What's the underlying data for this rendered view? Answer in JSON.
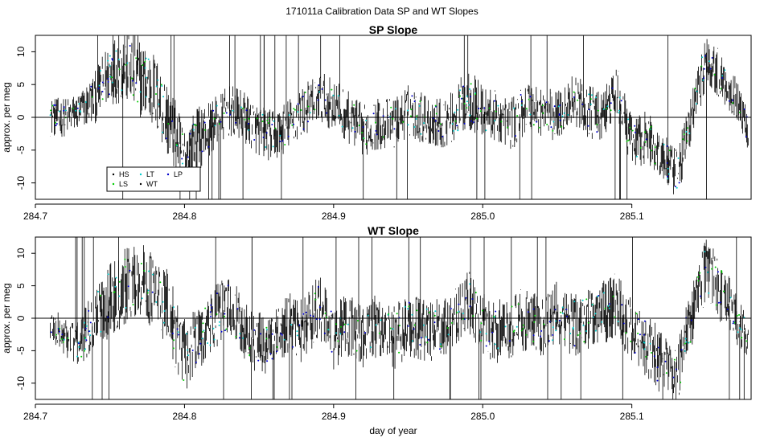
{
  "figure": {
    "title": "171011a   Calibration Data SP and WT Slopes",
    "xlabel": "day of year"
  },
  "chart_data": [
    {
      "type": "line",
      "title": "SP Slope",
      "xlabel": "",
      "ylabel": "approx. per meg",
      "xlim": [
        284.7,
        285.18
      ],
      "ylim": [
        -12.5,
        12.5
      ],
      "x_ticks": [
        284.7,
        284.8,
        284.9,
        285.0,
        285.1
      ],
      "x_tick_labels": [
        "284.7",
        "284.8",
        "284.9",
        "285.0",
        "285.1"
      ],
      "y_ticks": [
        -10,
        -5,
        0,
        5,
        10
      ],
      "y_tick_labels": [
        "-10",
        "-5",
        "0",
        "5",
        "10"
      ],
      "zero_line": true,
      "grid": false,
      "legend": {
        "position": "bottom-left",
        "entries": [
          {
            "label": "HS",
            "color": "#000000"
          },
          {
            "label": "LT",
            "color": "#00cccc"
          },
          {
            "label": "LP",
            "color": "#0000cc"
          },
          {
            "label": "LS",
            "color": "#00cc00"
          },
          {
            "label": "WT",
            "color": "#000000"
          }
        ]
      },
      "series": [
        {
          "x": [
            284.71,
            284.72,
            284.73,
            284.74,
            284.75,
            284.76,
            284.77,
            284.78,
            284.79,
            284.8,
            284.81,
            284.82,
            284.83,
            284.84,
            284.85,
            284.86,
            284.87,
            284.88,
            284.89,
            284.9,
            284.91,
            284.92,
            284.93,
            284.94,
            284.95,
            284.96,
            284.97,
            284.98,
            284.99,
            285.0,
            285.01,
            285.02,
            285.03,
            285.04,
            285.05,
            285.06,
            285.07,
            285.08,
            285.09,
            285.1,
            285.11,
            285.12,
            285.13,
            285.14,
            285.15,
            285.16,
            285.17,
            285.178
          ],
          "values": [
            0,
            0,
            1,
            3,
            7,
            8,
            6,
            4,
            -1,
            -6,
            -3,
            -1,
            1,
            0,
            -2,
            -3,
            -1,
            1,
            3,
            2,
            0,
            -2,
            -1,
            -1,
            1,
            0,
            -1,
            0,
            3,
            1,
            0,
            -1,
            2,
            1,
            0,
            3,
            1,
            0,
            4,
            -4,
            -3,
            -6,
            -9,
            0,
            9,
            6,
            3,
            -2
          ],
          "spread": [
            3,
            3,
            3,
            4,
            5,
            6,
            6,
            6,
            6,
            5,
            5,
            4,
            4,
            4,
            4,
            4,
            4,
            4,
            4,
            4,
            4,
            4,
            4,
            4,
            4,
            4,
            4,
            4,
            5,
            4,
            4,
            4,
            4,
            4,
            4,
            4,
            4,
            4,
            4,
            4,
            4,
            4,
            4,
            4,
            4,
            4,
            3,
            3
          ]
        }
      ]
    },
    {
      "type": "line",
      "title": "WT Slope",
      "xlabel": "day of year",
      "ylabel": "approx. per meg",
      "xlim": [
        284.7,
        285.18
      ],
      "ylim": [
        -12.5,
        12.5
      ],
      "x_ticks": [
        284.7,
        284.8,
        284.9,
        285.0,
        285.1
      ],
      "x_tick_labels": [
        "284.7",
        "284.8",
        "284.9",
        "285.0",
        "285.1"
      ],
      "y_ticks": [
        -10,
        -5,
        0,
        5,
        10
      ],
      "y_tick_labels": [
        "-10",
        "-5",
        "0",
        "5",
        "10"
      ],
      "zero_line": true,
      "grid": false,
      "series": [
        {
          "x": [
            284.71,
            284.72,
            284.73,
            284.74,
            284.75,
            284.76,
            284.77,
            284.78,
            284.79,
            284.8,
            284.81,
            284.82,
            284.83,
            284.84,
            284.85,
            284.86,
            284.87,
            284.88,
            284.89,
            284.9,
            284.91,
            284.92,
            284.93,
            284.94,
            284.95,
            284.96,
            284.97,
            284.98,
            284.99,
            285.0,
            285.01,
            285.02,
            285.03,
            285.04,
            285.05,
            285.06,
            285.07,
            285.08,
            285.09,
            285.1,
            285.11,
            285.12,
            285.13,
            285.14,
            285.15,
            285.16,
            285.17,
            285.178
          ],
          "values": [
            -1,
            -3,
            -4,
            0,
            3,
            5,
            6,
            4,
            1,
            -6,
            -3,
            0,
            2,
            -2,
            -4,
            -4,
            -1,
            -2,
            2,
            -3,
            -1,
            -3,
            -1,
            -3,
            -1,
            -2,
            -2,
            -1,
            3,
            -1,
            -2,
            -1,
            0,
            -2,
            1,
            -1,
            0,
            1,
            2,
            -2,
            -4,
            -7,
            -9,
            0,
            8,
            4,
            0,
            -3
          ],
          "spread": [
            3,
            3,
            4,
            5,
            6,
            6,
            6,
            6,
            6,
            6,
            5,
            5,
            5,
            5,
            5,
            5,
            5,
            5,
            5,
            5,
            5,
            5,
            5,
            5,
            5,
            5,
            5,
            5,
            5,
            5,
            5,
            5,
            5,
            5,
            5,
            5,
            5,
            5,
            5,
            5,
            5,
            5,
            5,
            5,
            5,
            5,
            4,
            3
          ]
        }
      ]
    }
  ]
}
